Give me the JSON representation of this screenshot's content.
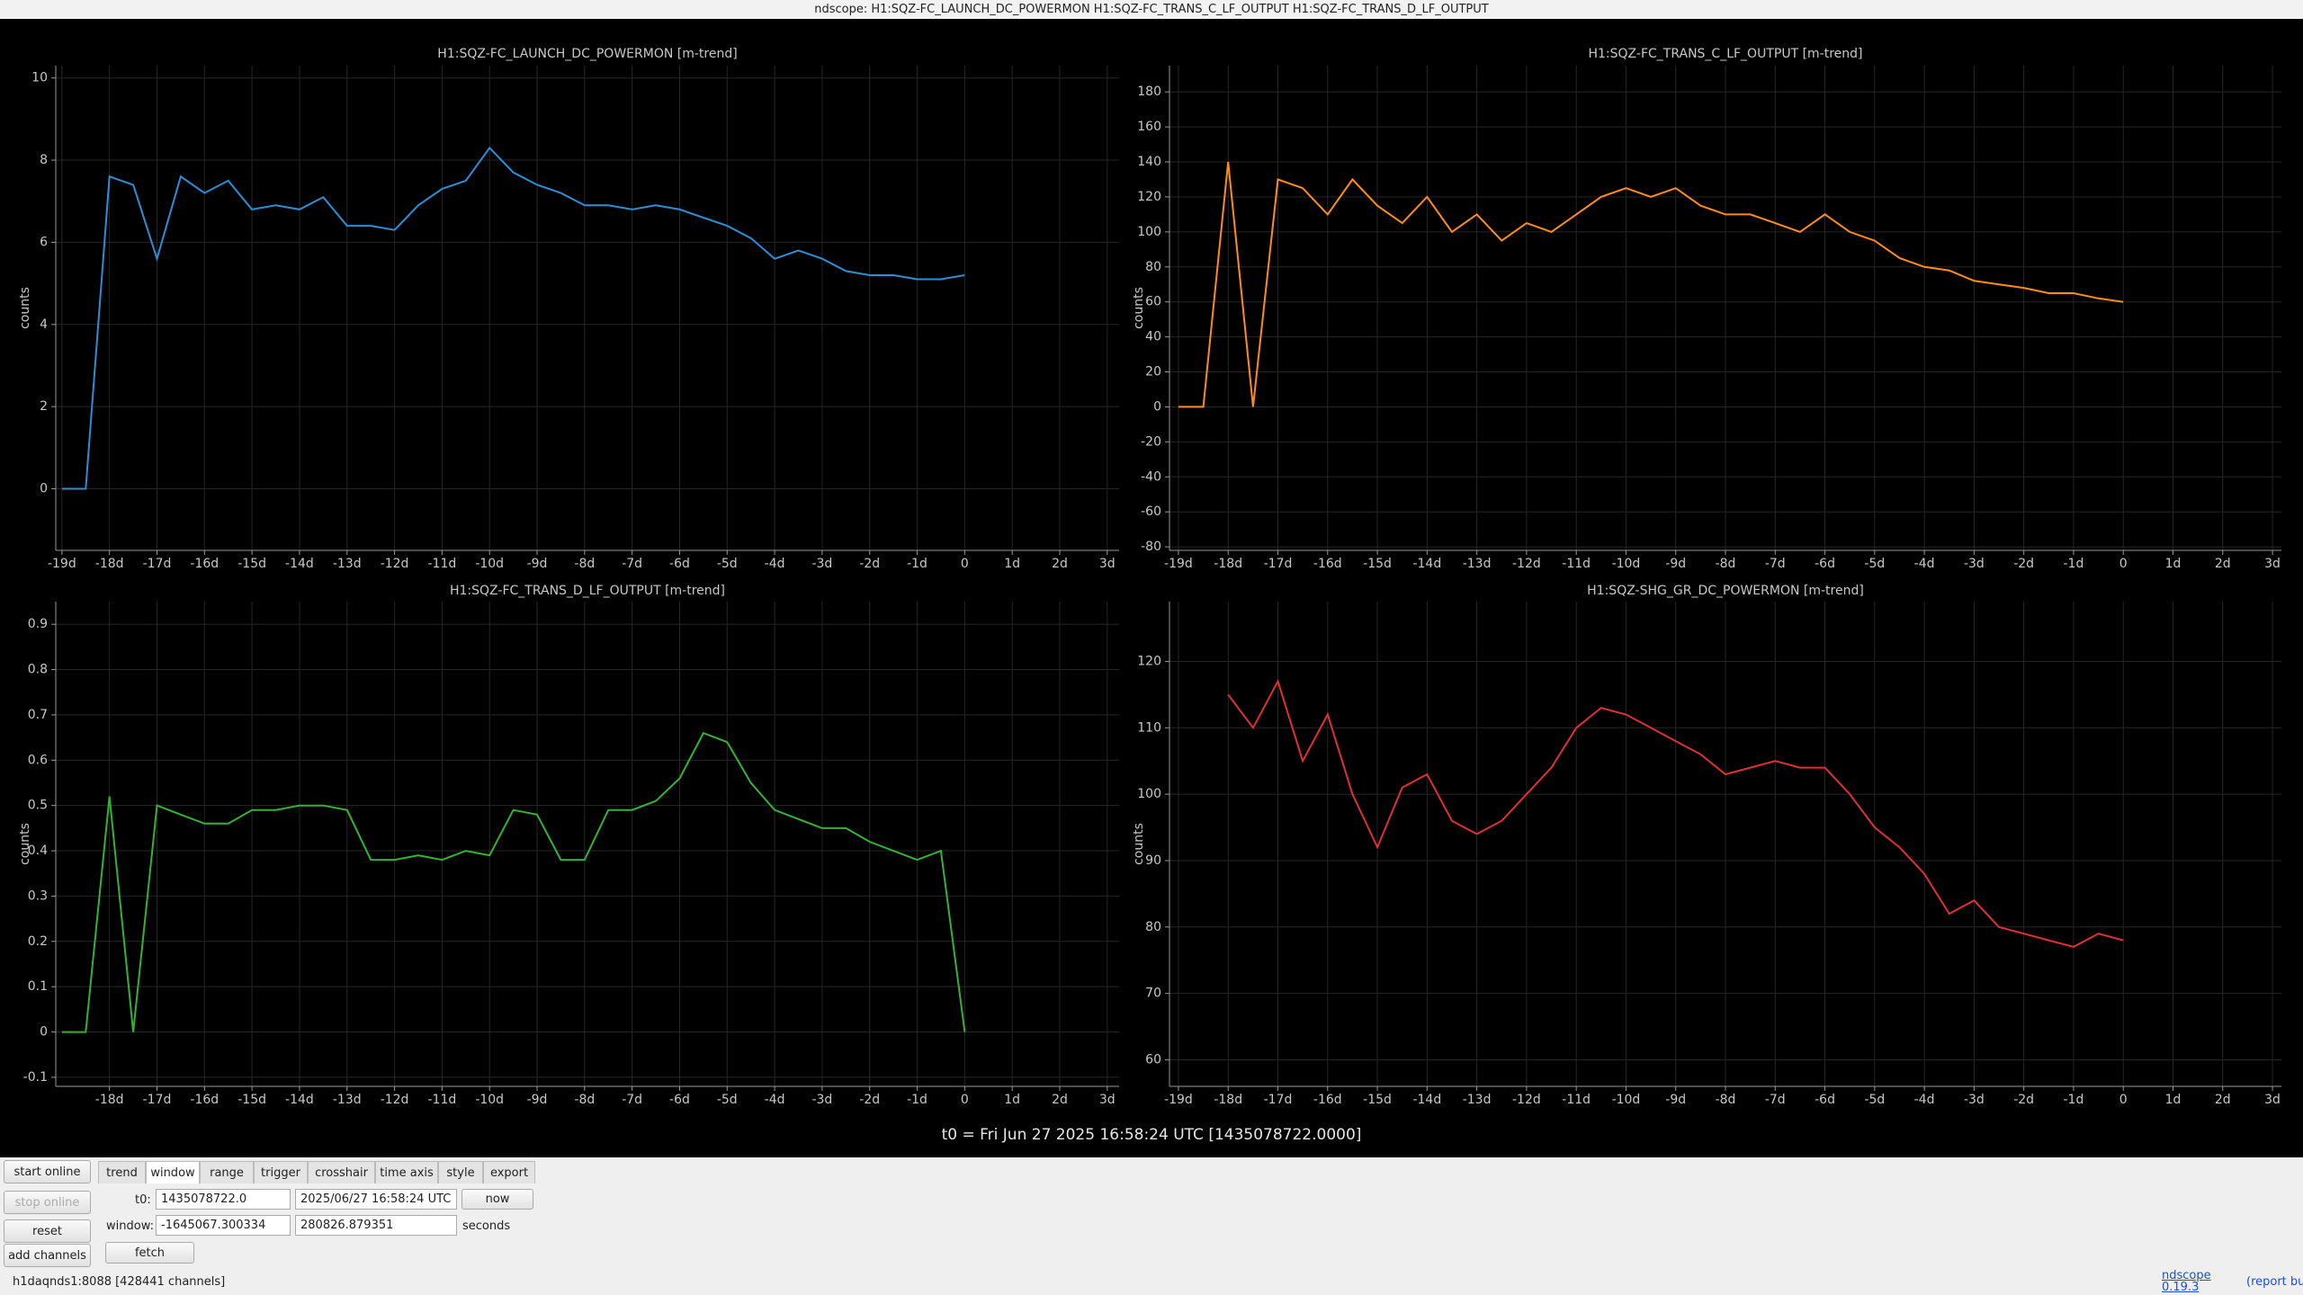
{
  "window_title": "ndscope: H1:SQZ-FC_LAUNCH_DC_POWERMON H1:SQZ-FC_TRANS_C_LF_OUTPUT H1:SQZ-FC_TRANS_D_LF_OUTPUT",
  "chart_data": [
    {
      "type": "line",
      "title": "H1:SQZ-FC_LAUNCH_DC_POWERMON [m-trend]",
      "ylabel": "counts",
      "x": [
        -19,
        -18.5,
        -18,
        -17.5,
        -17,
        -16.5,
        -16,
        -15.5,
        -15,
        -14.5,
        -14,
        -13.5,
        -13,
        -12.5,
        -12,
        -11.5,
        -11,
        -10.5,
        -10,
        -9.5,
        -9,
        -8.5,
        -8,
        -7.5,
        -7,
        -6.5,
        -6,
        -5.5,
        -5,
        -4.5,
        -4,
        -3.5,
        -3,
        -2.5,
        -2,
        -1.5,
        -1,
        -0.5,
        0
      ],
      "series": [
        {
          "color": "#2a8fd6",
          "values": [
            0,
            0,
            7.6,
            7.4,
            5.6,
            7.6,
            7.2,
            7.5,
            6.8,
            6.9,
            6.8,
            7.1,
            6.4,
            6.4,
            6.3,
            6.9,
            7.3,
            7.5,
            8.3,
            7.7,
            7.4,
            7.2,
            6.9,
            6.9,
            6.8,
            6.9,
            6.8,
            6.6,
            6.4,
            6.1,
            5.6,
            5.8,
            5.6,
            5.3,
            5.2,
            5.2,
            5.1,
            5.1,
            5.2
          ]
        }
      ],
      "xlim": [
        -19.13,
        3.25
      ],
      "xticks": [
        {
          "value": -19,
          "label": "-19d"
        },
        {
          "value": -18,
          "label": "-18d"
        },
        {
          "value": -17,
          "label": "-17d"
        },
        {
          "value": -16,
          "label": "-16d"
        },
        {
          "value": -15,
          "label": "-15d"
        },
        {
          "value": -14,
          "label": "-14d"
        },
        {
          "value": -13,
          "label": "-13d"
        },
        {
          "value": -12,
          "label": "-12d"
        },
        {
          "value": -11,
          "label": "-11d"
        },
        {
          "value": -10,
          "label": "-10d"
        },
        {
          "value": -9,
          "label": "-9d"
        },
        {
          "value": -8,
          "label": "-8d"
        },
        {
          "value": -7,
          "label": "-7d"
        },
        {
          "value": -6,
          "label": "-6d"
        },
        {
          "value": -5,
          "label": "-5d"
        },
        {
          "value": -4,
          "label": "-4d"
        },
        {
          "value": -3,
          "label": "-3d"
        },
        {
          "value": -2,
          "label": "-2d"
        },
        {
          "value": -1,
          "label": "-1d"
        },
        0,
        {
          "value": 1,
          "label": "1d"
        },
        {
          "value": 2,
          "label": "2d"
        },
        {
          "value": 3,
          "label": "3d"
        }
      ],
      "ylim": [
        -1.5,
        10.3
      ],
      "yticks": [
        0,
        2,
        4,
        6,
        8,
        10
      ],
      "grid": true
    },
    {
      "type": "line",
      "title": "H1:SQZ-FC_TRANS_C_LF_OUTPUT [m-trend]",
      "ylabel": "counts",
      "x": [
        -19,
        -18.5,
        -18,
        -17.5,
        -17,
        -16.5,
        -16,
        -15.5,
        -15,
        -14.5,
        -14,
        -13.5,
        -13,
        -12.5,
        -12,
        -11.5,
        -11,
        -10.5,
        -10,
        -9.5,
        -9,
        -8.5,
        -8,
        -7.5,
        -7,
        -6.5,
        -6,
        -5.5,
        -5,
        -4.5,
        -4,
        -3.5,
        -3,
        -2.5,
        -2,
        -1.5,
        -1,
        -0.5,
        0
      ],
      "series": [
        {
          "color": "#ff8c1a",
          "values": [
            0,
            0,
            140,
            0,
            130,
            125,
            110,
            130,
            115,
            105,
            120,
            100,
            110,
            95,
            105,
            100,
            110,
            120,
            125,
            120,
            125,
            115,
            110,
            110,
            105,
            100,
            110,
            100,
            95,
            85,
            80,
            78,
            72,
            70,
            68,
            65,
            65,
            62,
            60
          ]
        }
      ],
      "xlim": [
        -19.18,
        3.18
      ],
      "xticks": [
        {
          "value": -19,
          "label": "-19d"
        },
        {
          "value": -18,
          "label": "-18d"
        },
        {
          "value": -17,
          "label": "-17d"
        },
        {
          "value": -16,
          "label": "-16d"
        },
        {
          "value": -15,
          "label": "-15d"
        },
        {
          "value": -14,
          "label": "-14d"
        },
        {
          "value": -13,
          "label": "-13d"
        },
        {
          "value": -12,
          "label": "-12d"
        },
        {
          "value": -11,
          "label": "-11d"
        },
        {
          "value": -10,
          "label": "-10d"
        },
        {
          "value": -9,
          "label": "-9d"
        },
        {
          "value": -8,
          "label": "-8d"
        },
        {
          "value": -7,
          "label": "-7d"
        },
        {
          "value": -6,
          "label": "-6d"
        },
        {
          "value": -5,
          "label": "-5d"
        },
        {
          "value": -4,
          "label": "-4d"
        },
        {
          "value": -3,
          "label": "-3d"
        },
        {
          "value": -2,
          "label": "-2d"
        },
        {
          "value": -1,
          "label": "-1d"
        },
        0,
        {
          "value": 1,
          "label": "1d"
        },
        {
          "value": 2,
          "label": "2d"
        },
        {
          "value": 3,
          "label": "3d"
        }
      ],
      "ylim": [
        -82,
        195
      ],
      "yticks": [
        -80,
        -60,
        -40,
        -20,
        0,
        20,
        40,
        60,
        80,
        100,
        120,
        140,
        160,
        180
      ],
      "grid": true
    },
    {
      "type": "line",
      "title": "H1:SQZ-FC_TRANS_D_LF_OUTPUT [m-trend]",
      "ylabel": "counts",
      "x": [
        -19,
        -18.5,
        -18,
        -17.5,
        -17,
        -16.5,
        -16,
        -15.5,
        -15,
        -14.5,
        -14,
        -13.5,
        -13,
        -12.5,
        -12,
        -11.5,
        -11,
        -10.5,
        -10,
        -9.5,
        -9,
        -8.5,
        -8,
        -7.5,
        -7,
        -6.5,
        -6,
        -5.5,
        -5,
        -4.5,
        -4,
        -3.5,
        -3,
        -2.5,
        -2,
        -1.5,
        -1,
        -0.5,
        0
      ],
      "series": [
        {
          "color": "#33b333",
          "values": [
            0,
            0,
            0.52,
            0,
            0.5,
            0.48,
            0.46,
            0.46,
            0.49,
            0.49,
            0.5,
            0.5,
            0.49,
            0.38,
            0.38,
            0.39,
            0.38,
            0.4,
            0.39,
            0.49,
            0.48,
            0.38,
            0.38,
            0.49,
            0.49,
            0.51,
            0.56,
            0.66,
            0.64,
            0.55,
            0.49,
            0.47,
            0.45,
            0.45,
            0.42,
            0.4,
            0.38,
            0.4,
            0
          ]
        }
      ],
      "xlim": [
        -19.13,
        3.25
      ],
      "xticks": [
        {
          "value": -18,
          "label": "-18d"
        },
        {
          "value": -17,
          "label": "-17d"
        },
        {
          "value": -16,
          "label": "-16d"
        },
        {
          "value": -15,
          "label": "-15d"
        },
        {
          "value": -14,
          "label": "-14d"
        },
        {
          "value": -13,
          "label": "-13d"
        },
        {
          "value": -12,
          "label": "-12d"
        },
        {
          "value": -11,
          "label": "-11d"
        },
        {
          "value": -10,
          "label": "-10d"
        },
        {
          "value": -9,
          "label": "-9d"
        },
        {
          "value": -8,
          "label": "-8d"
        },
        {
          "value": -7,
          "label": "-7d"
        },
        {
          "value": -6,
          "label": "-6d"
        },
        {
          "value": -5,
          "label": "-5d"
        },
        {
          "value": -4,
          "label": "-4d"
        },
        {
          "value": -3,
          "label": "-3d"
        },
        {
          "value": -2,
          "label": "-2d"
        },
        {
          "value": -1,
          "label": "-1d"
        },
        0,
        {
          "value": 1,
          "label": "1d"
        },
        {
          "value": 2,
          "label": "2d"
        },
        {
          "value": 3,
          "label": "3d"
        }
      ],
      "ylim": [
        -0.12,
        0.95
      ],
      "yticks": [
        -0.1,
        0,
        0.1,
        0.2,
        0.3,
        0.4,
        0.5,
        0.6,
        0.7,
        0.8,
        0.9
      ],
      "grid": true
    },
    {
      "type": "line",
      "title": "H1:SQZ-SHG_GR_DC_POWERMON [m-trend]",
      "ylabel": "counts",
      "x": [
        -19,
        -18.5,
        -18,
        -17.5,
        -17,
        -16.5,
        -16,
        -15.5,
        -15,
        -14.5,
        -14,
        -13.5,
        -13,
        -12.5,
        -12,
        -11.5,
        -11,
        -10.5,
        -10,
        -9.5,
        -9,
        -8.5,
        -8,
        -7.5,
        -7,
        -6.5,
        -6,
        -5.5,
        -5,
        -4.5,
        -4,
        -3.5,
        -3,
        -2.5,
        -2,
        -1.5,
        -1,
        -0.5,
        0
      ],
      "series": [
        {
          "color": "#e03030",
          "values": [
            null,
            null,
            115,
            110,
            117,
            105,
            112,
            100,
            92,
            101,
            103,
            96,
            94,
            96,
            100,
            104,
            110,
            113,
            112,
            110,
            108,
            106,
            103,
            104,
            105,
            104,
            104,
            100,
            95,
            92,
            88,
            82,
            84,
            80,
            79,
            78,
            77,
            79,
            78
          ]
        }
      ],
      "xlim": [
        -19.18,
        3.18
      ],
      "xticks": [
        {
          "value": -19,
          "label": "-19d"
        },
        {
          "value": -18,
          "label": "-18d"
        },
        {
          "value": -17,
          "label": "-17d"
        },
        {
          "value": -16,
          "label": "-16d"
        },
        {
          "value": -15,
          "label": "-15d"
        },
        {
          "value": -14,
          "label": "-14d"
        },
        {
          "value": -13,
          "label": "-13d"
        },
        {
          "value": -12,
          "label": "-12d"
        },
        {
          "value": -11,
          "label": "-11d"
        },
        {
          "value": -10,
          "label": "-10d"
        },
        {
          "value": -9,
          "label": "-9d"
        },
        {
          "value": -8,
          "label": "-8d"
        },
        {
          "value": -7,
          "label": "-7d"
        },
        {
          "value": -6,
          "label": "-6d"
        },
        {
          "value": -5,
          "label": "-5d"
        },
        {
          "value": -4,
          "label": "-4d"
        },
        {
          "value": -3,
          "label": "-3d"
        },
        {
          "value": -2,
          "label": "-2d"
        },
        {
          "value": -1,
          "label": "-1d"
        },
        0,
        {
          "value": 1,
          "label": "1d"
        },
        {
          "value": 2,
          "label": "2d"
        },
        {
          "value": 3,
          "label": "3d"
        }
      ],
      "ylim": [
        56,
        129
      ],
      "yticks": [
        60,
        70,
        80,
        90,
        100,
        110,
        120
      ],
      "grid": true
    }
  ],
  "t0_label": "t0 = Fri Jun 27 2025 16:58:24 UTC [1435078722.0000]",
  "buttons": [
    "start online",
    "stop online",
    "reset",
    "add channels"
  ],
  "tabs": [
    "trend",
    "window",
    "range",
    "trigger",
    "crosshair",
    "time axis",
    "style",
    "export"
  ],
  "window_panel": {
    "t0_label": "t0:",
    "t0_gps": "1435078722.0",
    "t0_utc": "2025/06/27 16:58:24 UTC",
    "now": "now",
    "window_label": "window:",
    "window_start": "-1645067.300334",
    "window_end": "280826.879351",
    "units": "seconds",
    "fetch": "fetch"
  },
  "status": "h1daqnds1:8088 [428441 channels]",
  "footer": {
    "version": "ndscope 0.19.3",
    "report": "(report bug)"
  }
}
